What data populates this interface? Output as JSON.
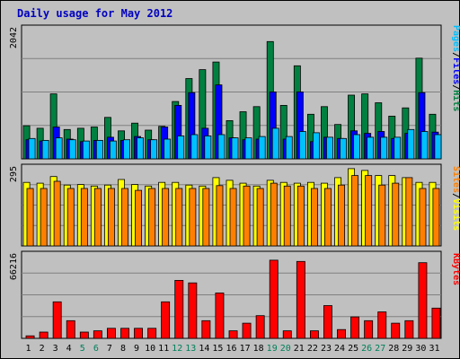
{
  "chart_data": {
    "type": "bar",
    "title": "Daily usage for May 2012",
    "categories": [
      "1",
      "2",
      "3",
      "4",
      "5",
      "6",
      "7",
      "8",
      "9",
      "10",
      "11",
      "12",
      "13",
      "14",
      "15",
      "16",
      "17",
      "18",
      "19",
      "20",
      "21",
      "22",
      "23",
      "24",
      "25",
      "26",
      "27",
      "28",
      "29",
      "30",
      "31"
    ],
    "weekend_days": [
      "5",
      "6",
      "12",
      "13",
      "19",
      "20",
      "26",
      "27"
    ],
    "panels": [
      {
        "name": "hits-files-pages",
        "max_label": "2042",
        "ylim": [
          0,
          2042
        ],
        "legend": [
          "Pages",
          "/",
          "Files",
          "/",
          "Hits"
        ],
        "legend_colors": [
          "#00c0ff",
          "#000000",
          "#0000ff",
          "#000000",
          "#008040"
        ],
        "series": [
          {
            "name": "Hits",
            "color": "#008040",
            "values": [
              520,
              480,
              1020,
              460,
              480,
              500,
              650,
              440,
              560,
              450,
              510,
              900,
              1260,
              1400,
              1520,
              600,
              740,
              820,
              1840,
              840,
              1460,
              700,
              820,
              540,
              1000,
              1020,
              880,
              670,
              800,
              1580,
              700
            ]
          },
          {
            "name": "Files",
            "color": "#0000ff",
            "values": [
              300,
              280,
              500,
              310,
              270,
              290,
              340,
              290,
              350,
              300,
              500,
              840,
              1040,
              480,
              1160,
              330,
              300,
              310,
              1050,
              310,
              1050,
              270,
              340,
              320,
              440,
              400,
              430,
              320,
              400,
              1040,
              420
            ]
          },
          {
            "name": "Pages",
            "color": "#00c0ff",
            "values": [
              320,
              290,
              330,
              300,
              280,
              290,
              280,
              300,
              330,
              300,
              310,
              360,
              380,
              360,
              380,
              330,
              330,
              350,
              480,
              350,
              430,
              410,
              340,
              320,
              380,
              340,
              340,
              340,
              460,
              430,
              380
            ]
          }
        ]
      },
      {
        "name": "visits-sites",
        "max_label": "295",
        "ylim": [
          0,
          295
        ],
        "legend": [
          "Sites",
          "/",
          "Visits"
        ],
        "legend_colors": [
          "#ff8000",
          "#000000",
          "#ffff00"
        ],
        "series": [
          {
            "name": "Visits",
            "color": "#ffff00",
            "values": [
              240,
              237,
              262,
              230,
              232,
              226,
              230,
              251,
              232,
              226,
              240,
              240,
              230,
              226,
              258,
              248,
              237,
              226,
              248,
              240,
              237,
              240,
              237,
              258,
              292,
              285,
              266,
              266,
              258,
              240,
              240
            ]
          },
          {
            "name": "Sites",
            "color": "#ff8000",
            "values": [
              217,
              217,
              244,
              217,
              217,
              217,
              217,
              217,
              210,
              217,
              217,
              217,
              217,
              217,
              228,
              217,
              226,
              217,
              237,
              226,
              226,
              217,
              217,
              230,
              266,
              266,
              230,
              237,
              258,
              217,
              217
            ]
          }
        ]
      },
      {
        "name": "kbytes",
        "max_label": "66216",
        "ylim": [
          0,
          66216
        ],
        "legend": [
          "KBytes"
        ],
        "legend_colors": [
          "#ff0000"
        ],
        "series": [
          {
            "name": "KBytes",
            "color": "#ff0000",
            "values": [
              2000,
              5000,
              29000,
              14000,
              5000,
              6000,
              8000,
              8000,
              8000,
              8000,
              29000,
              46000,
              44000,
              14000,
              36000,
              6000,
              12000,
              18000,
              62000,
              6000,
              61000,
              6000,
              26000,
              7000,
              17000,
              14000,
              21000,
              12000,
              14000,
              60000,
              24000
            ]
          }
        ]
      }
    ]
  }
}
